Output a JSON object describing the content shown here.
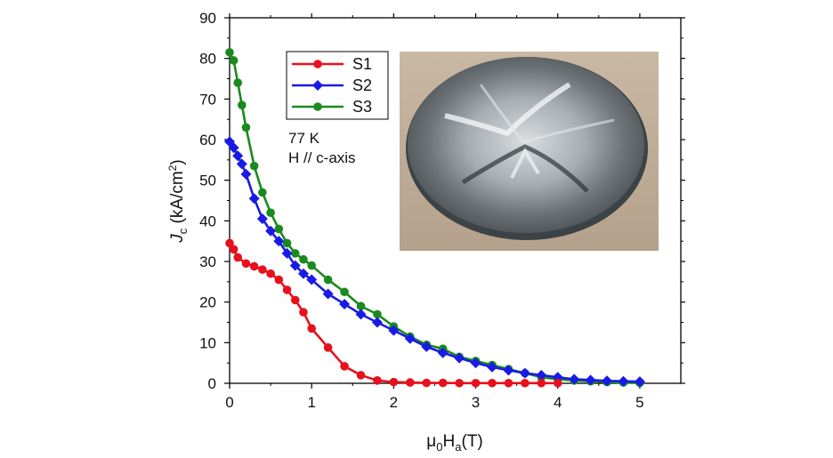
{
  "chart_data": {
    "type": "line",
    "xlabel": {
      "base": "μ",
      "base_sub": "0",
      "main": "H",
      "main_sub": "a",
      "unit": "(T)"
    },
    "ylabel": {
      "main": "J",
      "main_sub": "c",
      "unit_pre": " (kA/cm",
      "unit_sup": "2",
      "unit_post": ")"
    },
    "xlim": [
      0,
      5.5
    ],
    "ylim": [
      0,
      90
    ],
    "xticks": [
      "0",
      "1",
      "2",
      "3",
      "4",
      "5"
    ],
    "yticks": [
      "0",
      "10",
      "20",
      "30",
      "40",
      "50",
      "60",
      "70",
      "80",
      "90"
    ],
    "annotations": [
      "77 K",
      "H // c-axis"
    ],
    "legend_position": "top-left inside",
    "series": [
      {
        "name": "S1",
        "color": "#e8101c",
        "marker": "circle",
        "x": [
          0.0,
          0.05,
          0.1,
          0.2,
          0.3,
          0.4,
          0.5,
          0.6,
          0.7,
          0.8,
          0.9,
          1.0,
          1.2,
          1.4,
          1.6,
          1.8,
          2.0,
          2.2,
          2.4,
          2.6,
          2.8,
          3.0,
          3.2,
          3.4,
          3.6,
          3.8,
          4.0
        ],
        "y": [
          34.5,
          33.0,
          31.0,
          29.5,
          28.8,
          28.0,
          27.0,
          25.5,
          23.0,
          20.5,
          17.5,
          13.5,
          8.8,
          4.2,
          2.0,
          0.7,
          0.3,
          0.2,
          0.1,
          0.1,
          0.05,
          0.05,
          0.05,
          0.05,
          0.05,
          0.05,
          0.05
        ]
      },
      {
        "name": "S2",
        "color": "#1a1ae6",
        "marker": "diamond",
        "x": [
          0.0,
          0.05,
          0.1,
          0.15,
          0.2,
          0.3,
          0.4,
          0.5,
          0.6,
          0.7,
          0.8,
          0.9,
          1.0,
          1.2,
          1.4,
          1.6,
          1.8,
          2.0,
          2.2,
          2.4,
          2.6,
          2.8,
          3.0,
          3.2,
          3.4,
          3.6,
          3.8,
          4.0,
          4.2,
          4.4,
          4.6,
          4.8,
          5.0
        ],
        "y": [
          59.5,
          58.0,
          56.0,
          54.0,
          51.5,
          45.5,
          40.5,
          37.5,
          35.0,
          32.0,
          29.0,
          27.0,
          25.5,
          22.0,
          19.5,
          17.0,
          15.0,
          13.0,
          11.0,
          9.0,
          7.5,
          6.2,
          5.0,
          4.0,
          3.2,
          2.5,
          2.0,
          1.5,
          1.0,
          0.8,
          0.6,
          0.5,
          0.4
        ]
      },
      {
        "name": "S3",
        "color": "#1a8a1f",
        "marker": "circle",
        "x": [
          0.0,
          0.05,
          0.1,
          0.15,
          0.2,
          0.3,
          0.4,
          0.5,
          0.6,
          0.7,
          0.8,
          0.9,
          1.0,
          1.2,
          1.4,
          1.6,
          1.8,
          2.0,
          2.2,
          2.4,
          2.6,
          2.8,
          3.0,
          3.2,
          3.4,
          3.6,
          3.8,
          4.0,
          4.2,
          4.4,
          4.6,
          4.8,
          5.0
        ],
        "y": [
          81.5,
          79.5,
          74.0,
          68.5,
          63.0,
          53.5,
          47.0,
          42.0,
          38.0,
          34.5,
          32.0,
          30.5,
          29.0,
          25.5,
          22.5,
          19.0,
          17.0,
          14.0,
          11.5,
          9.5,
          8.5,
          6.5,
          5.5,
          4.5,
          3.5,
          2.5,
          1.5,
          1.0,
          0.7,
          0.5,
          0.3,
          0.2,
          0.1
        ]
      }
    ]
  }
}
